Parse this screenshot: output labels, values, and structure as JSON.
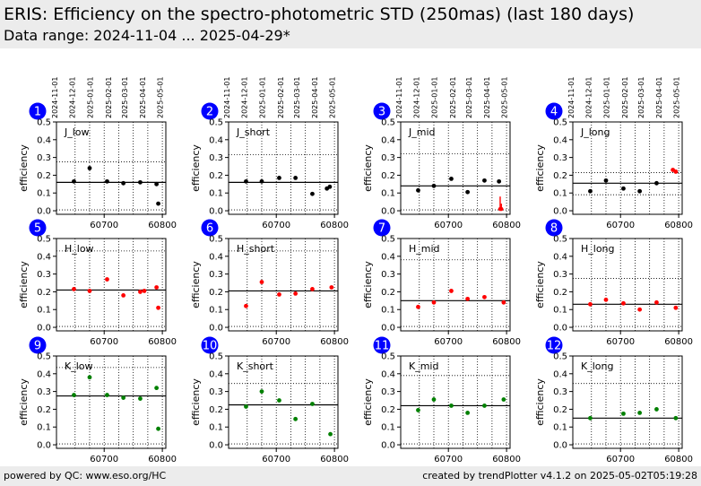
{
  "header": {
    "title": "ERIS: Efficiency on the spectro-photometric STD (250mas) (last 180 days)",
    "subtitle": "Data range: 2024-11-04 ... 2025-04-29*"
  },
  "footer": {
    "left": "powered by QC: www.eso.org/HC",
    "right": "created by trendPlotter v4.1.2 on 2025-05-02T05:19:28"
  },
  "colors": {
    "black": "#000000",
    "red": "#ff0000",
    "green": "#008000",
    "badge": "#0000ff"
  },
  "date_ticks": [
    "2024-11-01",
    "2024-12-01",
    "2025-01-01",
    "2025-02-01",
    "2025-03-01",
    "2025-04-01",
    "2025-05-01"
  ],
  "chart_data": [
    {
      "type": "scatter",
      "id": "1",
      "label": "J_low",
      "color": "black",
      "ylabel": "efficiency",
      "ylim": [
        0,
        0.5
      ],
      "yticks": [
        "0.0",
        "0.1",
        "0.2",
        "0.3",
        "0.4",
        "0.5"
      ],
      "xticks": [
        "60700",
        "60800"
      ],
      "ref": 0.16,
      "upper": 0.275,
      "lower": 0.005,
      "points": [
        [
          60648,
          0.165
        ],
        [
          60675,
          0.24
        ],
        [
          60705,
          0.165
        ],
        [
          60733,
          0.155
        ],
        [
          60762,
          0.16
        ],
        [
          60790,
          0.15
        ],
        [
          60793,
          0.04
        ]
      ],
      "errors": []
    },
    {
      "type": "scatter",
      "id": "2",
      "label": "J_short",
      "color": "black",
      "ylabel": "efficiency",
      "ylim": [
        0,
        0.5
      ],
      "yticks": [
        "0.0",
        "0.1",
        "0.2",
        "0.3",
        "0.4",
        "0.5"
      ],
      "xticks": [
        "60700",
        "60800"
      ],
      "ref": 0.16,
      "upper": 0.315,
      "lower": 0.005,
      "points": [
        [
          60648,
          0.165
        ],
        [
          60675,
          0.165
        ],
        [
          60705,
          0.185
        ],
        [
          60733,
          0.185
        ],
        [
          60762,
          0.095
        ],
        [
          60787,
          0.125
        ],
        [
          60792,
          0.135
        ]
      ],
      "errors": []
    },
    {
      "type": "scatter",
      "id": "3",
      "label": "J_mid",
      "color": "black",
      "ylabel": "efficiency",
      "ylim": [
        0,
        0.5
      ],
      "yticks": [
        "0.0",
        "0.1",
        "0.2",
        "0.3",
        "0.4",
        "0.5"
      ],
      "xticks": [
        "60700",
        "60800"
      ],
      "ref": 0.14,
      "upper": 0.32,
      "lower": 0.005,
      "points": [
        [
          60648,
          0.115
        ],
        [
          60675,
          0.14
        ],
        [
          60705,
          0.18
        ],
        [
          60733,
          0.105
        ],
        [
          60762,
          0.17
        ],
        [
          60787,
          0.165
        ]
      ],
      "errors": [
        [
          60789,
          0.08,
          0.0
        ],
        [
          60791,
          0.04,
          0.0
        ]
      ]
    },
    {
      "type": "scatter",
      "id": "4",
      "label": "J_long",
      "color": "black",
      "ylabel": "efficiency",
      "ylim": [
        0,
        0.5
      ],
      "yticks": [
        "0.0",
        "0.1",
        "0.2",
        "0.3",
        "0.4",
        "0.5"
      ],
      "xticks": [
        "60700",
        "60800"
      ],
      "ref": 0.155,
      "upper": 0.215,
      "lower": 0.09,
      "points": [
        [
          60648,
          0.11
        ],
        [
          60675,
          0.17
        ],
        [
          60705,
          0.125
        ],
        [
          60733,
          0.11
        ],
        [
          60762,
          0.155
        ]
      ],
      "red_points": [
        [
          60790,
          0.23
        ],
        [
          60795,
          0.22
        ]
      ],
      "errors": []
    },
    {
      "type": "scatter",
      "id": "5",
      "label": "H_low",
      "color": "red",
      "ylabel": "efficiency",
      "ylim": [
        0,
        0.5
      ],
      "yticks": [
        "0.0",
        "0.1",
        "0.2",
        "0.3",
        "0.4",
        "0.5"
      ],
      "xticks": [
        "60700",
        "60800"
      ],
      "ref": 0.21,
      "upper": 0.43,
      "lower": 0.005,
      "points": [
        [
          60648,
          0.215
        ],
        [
          60675,
          0.205
        ],
        [
          60705,
          0.27
        ],
        [
          60733,
          0.18
        ],
        [
          60762,
          0.2
        ],
        [
          60769,
          0.205
        ],
        [
          60790,
          0.225
        ],
        [
          60793,
          0.11
        ]
      ],
      "errors": []
    },
    {
      "type": "scatter",
      "id": "6",
      "label": "H_short",
      "color": "red",
      "ylabel": "efficiency",
      "ylim": [
        0,
        0.5
      ],
      "yticks": [
        "0.0",
        "0.1",
        "0.2",
        "0.3",
        "0.4",
        "0.5"
      ],
      "xticks": [
        "60700",
        "60800"
      ],
      "ref": 0.205,
      "upper": 0.43,
      "lower": 0.005,
      "points": [
        [
          60648,
          0.12
        ],
        [
          60675,
          0.255
        ],
        [
          60705,
          0.185
        ],
        [
          60733,
          0.19
        ],
        [
          60762,
          0.215
        ],
        [
          60795,
          0.225
        ]
      ],
      "errors": []
    },
    {
      "type": "scatter",
      "id": "7",
      "label": "H_mid",
      "color": "red",
      "ylabel": "efficiency",
      "ylim": [
        0,
        0.5
      ],
      "yticks": [
        "0.0",
        "0.1",
        "0.2",
        "0.3",
        "0.4",
        "0.5"
      ],
      "xticks": [
        "60700",
        "60800"
      ],
      "ref": 0.15,
      "upper": 0.38,
      "lower": 0.005,
      "points": [
        [
          60648,
          0.115
        ],
        [
          60675,
          0.14
        ],
        [
          60705,
          0.205
        ],
        [
          60733,
          0.16
        ],
        [
          60762,
          0.17
        ],
        [
          60795,
          0.14
        ]
      ],
      "errors": []
    },
    {
      "type": "scatter",
      "id": "8",
      "label": "H_long",
      "color": "red",
      "ylabel": "efficiency",
      "ylim": [
        0,
        0.5
      ],
      "yticks": [
        "0.0",
        "0.1",
        "0.2",
        "0.3",
        "0.4",
        "0.5"
      ],
      "xticks": [
        "60700",
        "60800"
      ],
      "ref": 0.13,
      "upper": 0.275,
      "lower": 0.005,
      "points": [
        [
          60648,
          0.13
        ],
        [
          60675,
          0.155
        ],
        [
          60705,
          0.135
        ],
        [
          60733,
          0.1
        ],
        [
          60762,
          0.14
        ],
        [
          60795,
          0.11
        ]
      ],
      "errors": []
    },
    {
      "type": "scatter",
      "id": "9",
      "label": "K_low",
      "color": "green",
      "ylabel": "efficiency",
      "ylim": [
        0,
        0.5
      ],
      "yticks": [
        "0.0",
        "0.1",
        "0.2",
        "0.3",
        "0.4",
        "0.5"
      ],
      "xticks": [
        "60700",
        "60800"
      ],
      "ref": 0.275,
      "upper": 0.435,
      "lower": 0.005,
      "points": [
        [
          60648,
          0.28
        ],
        [
          60675,
          0.38
        ],
        [
          60705,
          0.28
        ],
        [
          60733,
          0.265
        ],
        [
          60762,
          0.26
        ],
        [
          60790,
          0.32
        ],
        [
          60793,
          0.09
        ]
      ],
      "errors": []
    },
    {
      "type": "scatter",
      "id": "10",
      "label": "K_short",
      "color": "green",
      "ylabel": "efficiency",
      "ylim": [
        0,
        0.5
      ],
      "yticks": [
        "0.0",
        "0.1",
        "0.2",
        "0.3",
        "0.4",
        "0.5"
      ],
      "xticks": [
        "60700",
        "60800"
      ],
      "ref": 0.225,
      "upper": 0.345,
      "lower": 0.005,
      "points": [
        [
          60648,
          0.215
        ],
        [
          60675,
          0.3
        ],
        [
          60705,
          0.25
        ],
        [
          60733,
          0.145
        ],
        [
          60762,
          0.23
        ],
        [
          60793,
          0.06
        ]
      ],
      "errors": []
    },
    {
      "type": "scatter",
      "id": "11",
      "label": "K_mid",
      "color": "green",
      "ylabel": "efficiency",
      "ylim": [
        0,
        0.5
      ],
      "yticks": [
        "0.0",
        "0.1",
        "0.2",
        "0.3",
        "0.4",
        "0.5"
      ],
      "xticks": [
        "60700",
        "60800"
      ],
      "ref": 0.22,
      "upper": 0.39,
      "lower": 0.005,
      "points": [
        [
          60648,
          0.195
        ],
        [
          60675,
          0.255
        ],
        [
          60705,
          0.22
        ],
        [
          60733,
          0.18
        ],
        [
          60762,
          0.22
        ],
        [
          60795,
          0.255
        ]
      ],
      "errors": []
    },
    {
      "type": "scatter",
      "id": "12",
      "label": "K_long",
      "color": "green",
      "ylabel": "efficiency",
      "ylim": [
        0,
        0.5
      ],
      "yticks": [
        "0.0",
        "0.1",
        "0.2",
        "0.3",
        "0.4",
        "0.5"
      ],
      "xticks": [
        "60700",
        "60800"
      ],
      "ref": 0.15,
      "upper": 0.345,
      "lower": 0.005,
      "points": [
        [
          60648,
          0.15
        ],
        [
          60705,
          0.175
        ],
        [
          60733,
          0.18
        ],
        [
          60762,
          0.2
        ],
        [
          60795,
          0.15
        ]
      ],
      "errors": []
    }
  ]
}
